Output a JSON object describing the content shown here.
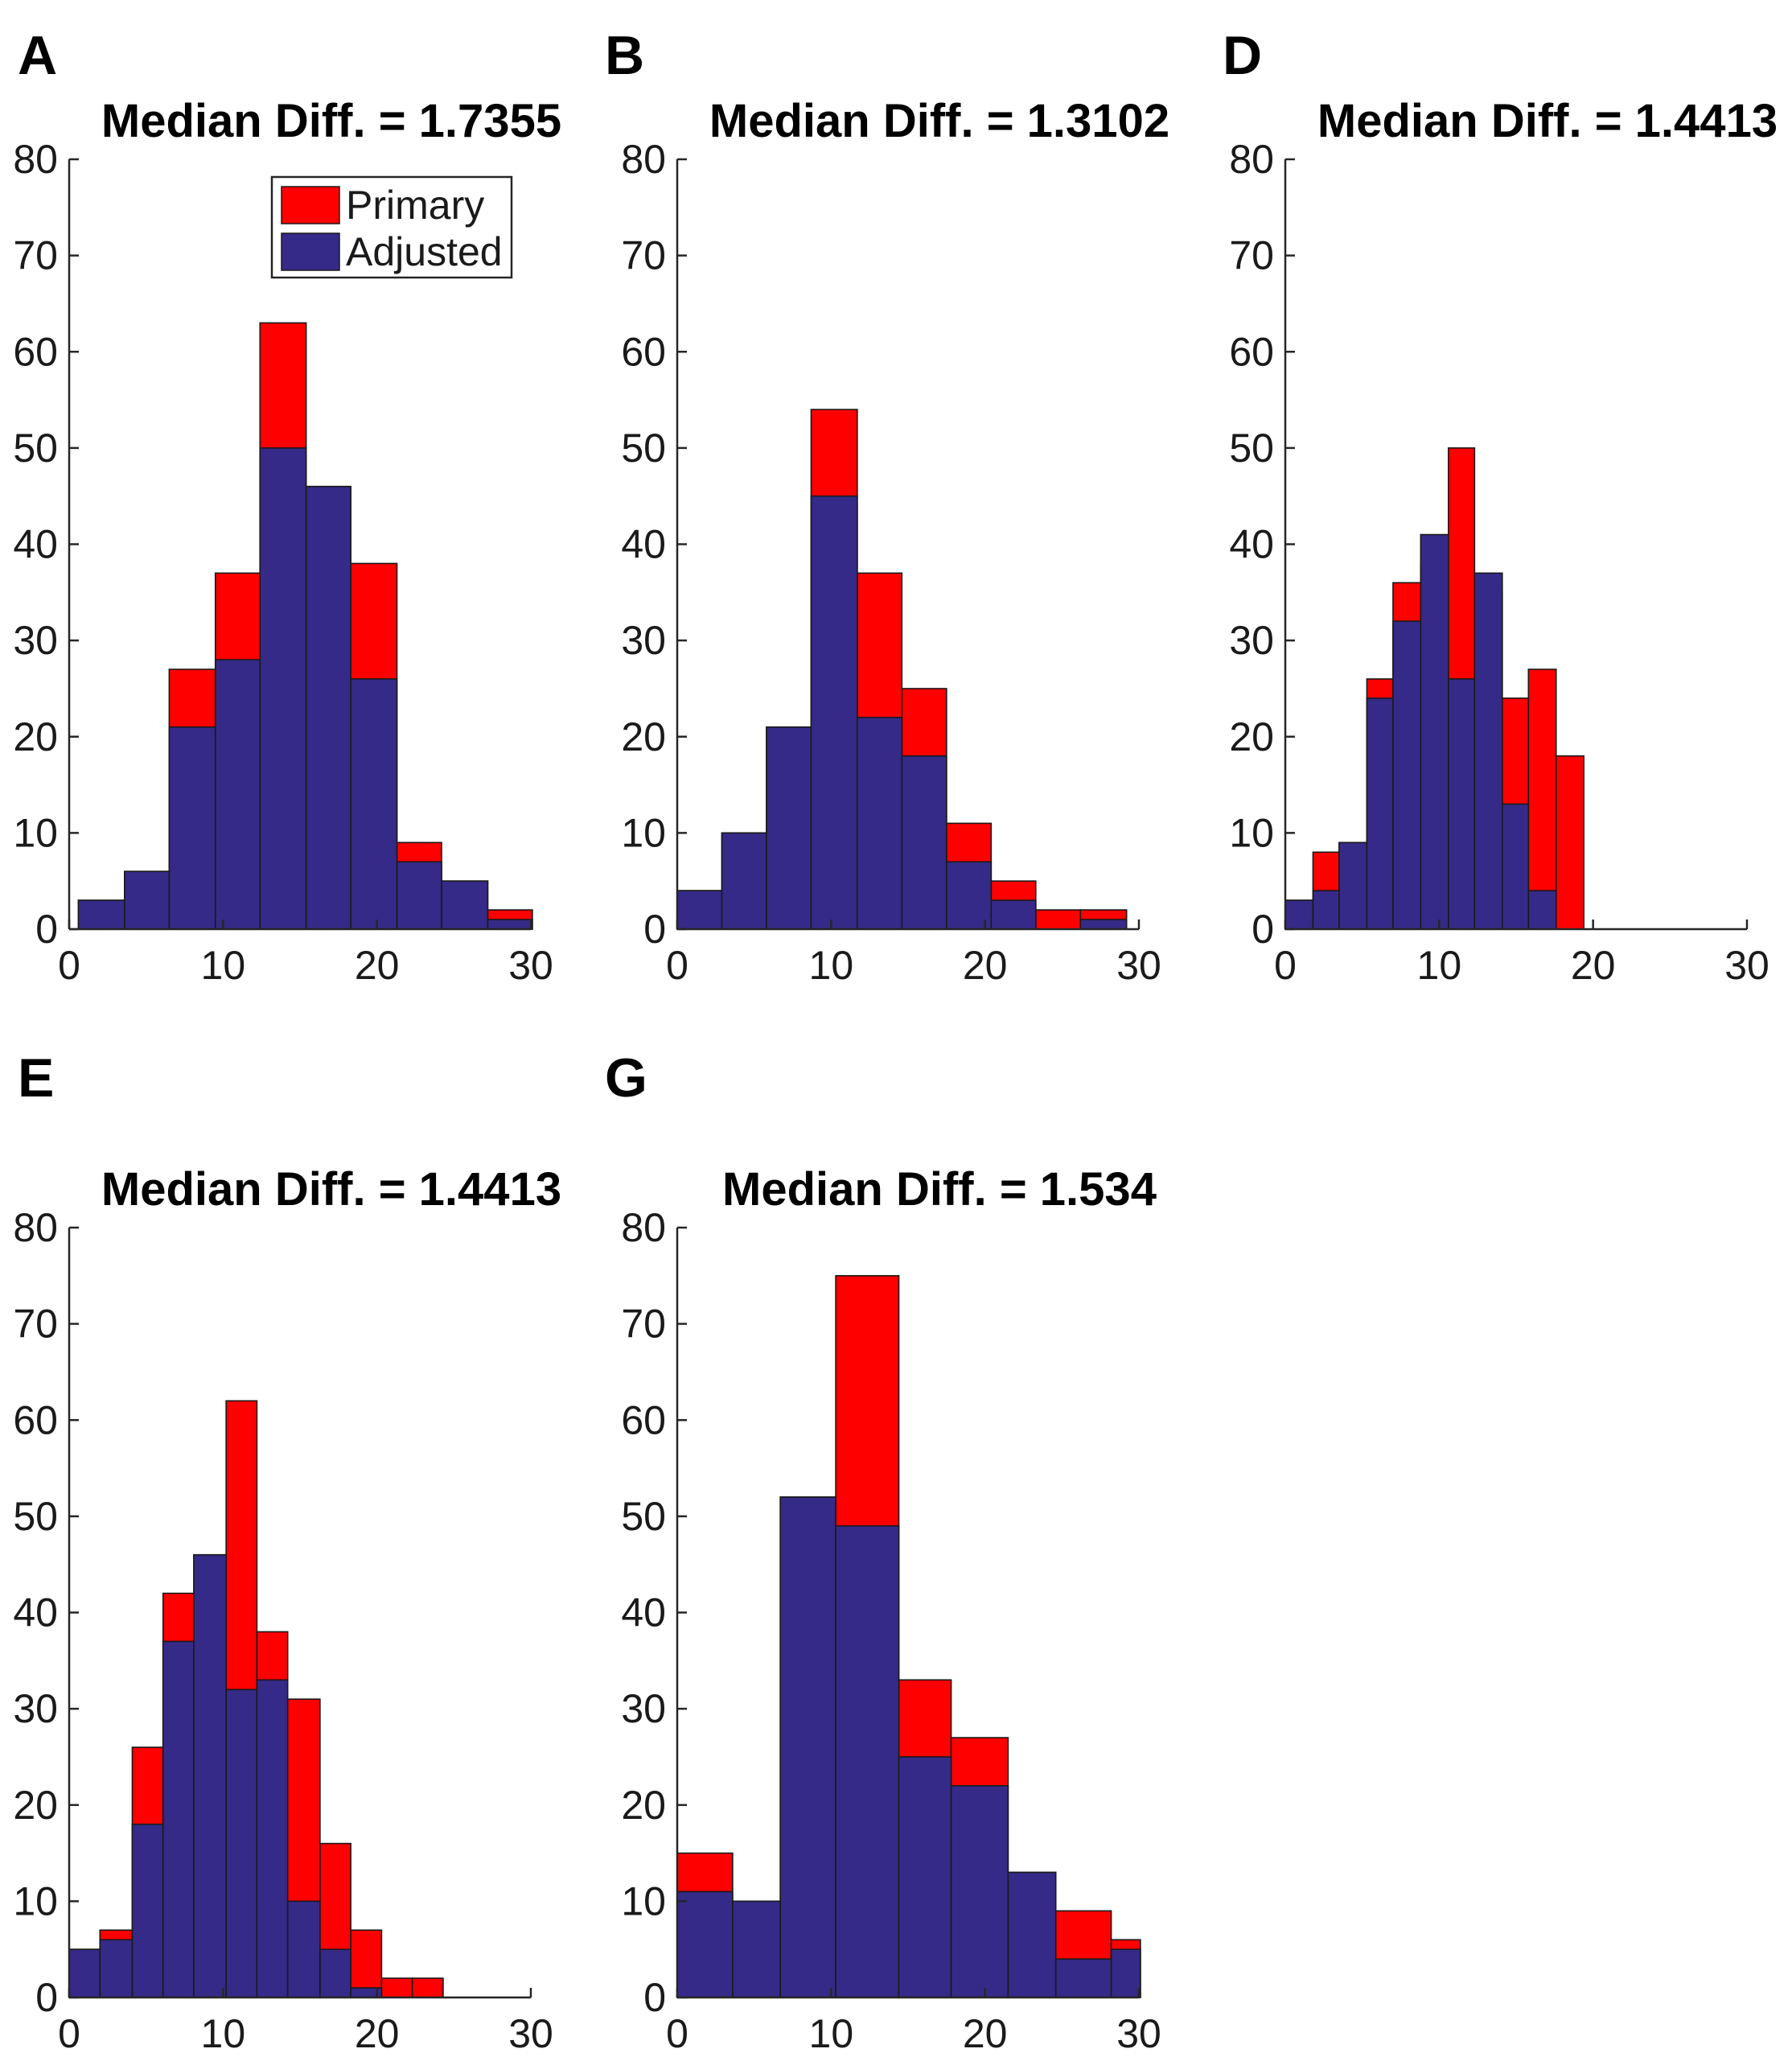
{
  "figure": {
    "colors": {
      "primary": "#ff0000",
      "adjusted": "#352a87"
    }
  },
  "legend": {
    "entries": [
      {
        "label": "Primary",
        "color": "#ff0000"
      },
      {
        "label": "Adjusted",
        "color": "#352a87"
      }
    ],
    "location": "top-right of panel A"
  },
  "chart_data": [
    {
      "panel": "A",
      "type": "bar",
      "title": "Median Diff. = 1.7355",
      "xlim": [
        0,
        30
      ],
      "ylim": [
        0,
        80
      ],
      "xticks": [
        "0",
        "10",
        "20",
        "30"
      ],
      "yticks": [
        "0",
        "10",
        "20",
        "30",
        "40",
        "50",
        "60",
        "70",
        "80"
      ],
      "series": [
        {
          "name": "Primary",
          "bins": [
            [
              0.6,
              3.6,
              3
            ],
            [
              3.6,
              6.5,
              6
            ],
            [
              6.5,
              9.5,
              27
            ],
            [
              9.5,
              12.4,
              37
            ],
            [
              12.4,
              15.4,
              63
            ],
            [
              15.4,
              18.3,
              46
            ],
            [
              18.3,
              21.3,
              38
            ],
            [
              21.3,
              24.2,
              9
            ],
            [
              24.2,
              27.2,
              5
            ],
            [
              27.2,
              30.1,
              2
            ]
          ]
        },
        {
          "name": "Adjusted",
          "bins": [
            [
              0.6,
              3.6,
              3
            ],
            [
              3.6,
              6.5,
              6
            ],
            [
              6.5,
              9.5,
              21
            ],
            [
              9.5,
              12.4,
              28
            ],
            [
              12.4,
              15.4,
              50
            ],
            [
              15.4,
              18.3,
              46
            ],
            [
              18.3,
              21.3,
              26
            ],
            [
              21.3,
              24.2,
              7
            ],
            [
              24.2,
              27.2,
              5
            ],
            [
              27.2,
              30.1,
              1
            ]
          ]
        }
      ]
    },
    {
      "panel": "B",
      "type": "bar",
      "title": "Median Diff. = 1.3102",
      "xlim": [
        0,
        30
      ],
      "ylim": [
        0,
        80
      ],
      "xticks": [
        "0",
        "10",
        "20",
        "30"
      ],
      "yticks": [
        "0",
        "10",
        "20",
        "30",
        "40",
        "50",
        "60",
        "70",
        "80"
      ],
      "series": [
        {
          "name": "Primary",
          "bins": [
            [
              0,
              2.9,
              4
            ],
            [
              2.9,
              5.8,
              10
            ],
            [
              5.8,
              8.7,
              21
            ],
            [
              8.7,
              11.7,
              54
            ],
            [
              11.7,
              14.6,
              37
            ],
            [
              14.6,
              17.5,
              25
            ],
            [
              17.5,
              20.4,
              11
            ],
            [
              20.4,
              23.3,
              5
            ],
            [
              23.3,
              26.2,
              2
            ],
            [
              26.2,
              29.2,
              2
            ]
          ]
        },
        {
          "name": "Adjusted",
          "bins": [
            [
              0,
              2.9,
              4
            ],
            [
              2.9,
              5.8,
              10
            ],
            [
              5.8,
              8.7,
              21
            ],
            [
              8.7,
              11.7,
              45
            ],
            [
              11.7,
              14.6,
              22
            ],
            [
              14.6,
              17.5,
              18
            ],
            [
              17.5,
              20.4,
              7
            ],
            [
              20.4,
              23.3,
              3
            ],
            [
              23.3,
              26.2,
              0
            ],
            [
              26.2,
              29.2,
              1
            ]
          ]
        }
      ]
    },
    {
      "panel": "D",
      "type": "bar",
      "title": "Median Diff. = 1.4413",
      "xlim": [
        0,
        30
      ],
      "ylim": [
        0,
        80
      ],
      "xticks": [
        "0",
        "10",
        "20",
        "30"
      ],
      "yticks": [
        "0",
        "10",
        "20",
        "30",
        "40",
        "50",
        "60",
        "70",
        "80"
      ],
      "series": [
        {
          "name": "Primary",
          "bins": [
            [
              0,
              1.8,
              3
            ],
            [
              1.8,
              3.5,
              8
            ],
            [
              3.5,
              5.3,
              9
            ],
            [
              5.3,
              7.0,
              26
            ],
            [
              7.0,
              8.8,
              36
            ],
            [
              8.8,
              10.6,
              38
            ],
            [
              10.6,
              12.3,
              50
            ],
            [
              12.3,
              14.1,
              35
            ],
            [
              14.1,
              15.8,
              24
            ],
            [
              15.8,
              17.6,
              27
            ],
            [
              17.6,
              19.4,
              18
            ]
          ]
        },
        {
          "name": "Adjusted",
          "bins": [
            [
              0,
              1.8,
              3
            ],
            [
              1.8,
              3.5,
              4
            ],
            [
              3.5,
              5.3,
              9
            ],
            [
              5.3,
              7.0,
              24
            ],
            [
              7.0,
              8.8,
              32
            ],
            [
              8.8,
              10.6,
              41
            ],
            [
              10.6,
              12.3,
              26
            ],
            [
              12.3,
              14.1,
              37
            ],
            [
              14.1,
              15.8,
              13
            ],
            [
              15.8,
              17.6,
              4
            ],
            [
              17.6,
              19.4,
              0
            ]
          ]
        }
      ]
    },
    {
      "panel": "E",
      "type": "bar",
      "title": "Median Diff. = 1.4413",
      "xlim": [
        0,
        30
      ],
      "ylim": [
        0,
        80
      ],
      "xticks": [
        "0",
        "10",
        "20",
        "30"
      ],
      "yticks": [
        "0",
        "10",
        "20",
        "30",
        "40",
        "50",
        "60",
        "70",
        "80"
      ],
      "series": [
        {
          "name": "Primary",
          "bins": [
            [
              0,
              2.0,
              5
            ],
            [
              2.0,
              4.1,
              7
            ],
            [
              4.1,
              6.1,
              26
            ],
            [
              6.1,
              8.1,
              42
            ],
            [
              8.1,
              10.2,
              46
            ],
            [
              10.2,
              12.2,
              62
            ],
            [
              12.2,
              14.2,
              38
            ],
            [
              14.2,
              16.3,
              31
            ],
            [
              16.3,
              18.3,
              16
            ],
            [
              18.3,
              20.3,
              7
            ],
            [
              20.3,
              22.3,
              2
            ],
            [
              22.3,
              24.3,
              2
            ]
          ]
        },
        {
          "name": "Adjusted",
          "bins": [
            [
              0,
              2.0,
              5
            ],
            [
              2.0,
              4.1,
              6
            ],
            [
              4.1,
              6.1,
              18
            ],
            [
              6.1,
              8.1,
              37
            ],
            [
              8.1,
              10.2,
              46
            ],
            [
              10.2,
              12.2,
              32
            ],
            [
              12.2,
              14.2,
              33
            ],
            [
              14.2,
              16.3,
              10
            ],
            [
              16.3,
              18.3,
              5
            ],
            [
              18.3,
              20.3,
              1
            ],
            [
              20.3,
              22.3,
              0
            ],
            [
              22.3,
              24.3,
              0
            ]
          ]
        }
      ]
    },
    {
      "panel": "G",
      "type": "bar",
      "title": "Median Diff. = 1.534",
      "xlim": [
        0,
        30
      ],
      "ylim": [
        0,
        80
      ],
      "xticks": [
        "0",
        "10",
        "20",
        "30"
      ],
      "yticks": [
        "0",
        "10",
        "20",
        "30",
        "40",
        "50",
        "60",
        "70",
        "80"
      ],
      "series": [
        {
          "name": "Primary",
          "bins": [
            [
              0,
              3.6,
              15
            ],
            [
              3.6,
              6.7,
              10
            ],
            [
              6.7,
              10.3,
              52
            ],
            [
              10.3,
              14.4,
              75
            ],
            [
              14.4,
              17.8,
              33
            ],
            [
              17.8,
              21.5,
              27
            ],
            [
              21.5,
              24.6,
              13
            ],
            [
              24.6,
              28.2,
              9
            ],
            [
              28.2,
              30.1,
              6
            ]
          ]
        },
        {
          "name": "Adjusted",
          "bins": [
            [
              0,
              3.6,
              11
            ],
            [
              3.6,
              6.7,
              10
            ],
            [
              6.7,
              10.3,
              52
            ],
            [
              10.3,
              14.4,
              49
            ],
            [
              14.4,
              17.8,
              25
            ],
            [
              17.8,
              21.5,
              22
            ],
            [
              21.5,
              24.6,
              13
            ],
            [
              24.6,
              28.2,
              4
            ],
            [
              28.2,
              30.1,
              5
            ]
          ]
        }
      ]
    }
  ]
}
